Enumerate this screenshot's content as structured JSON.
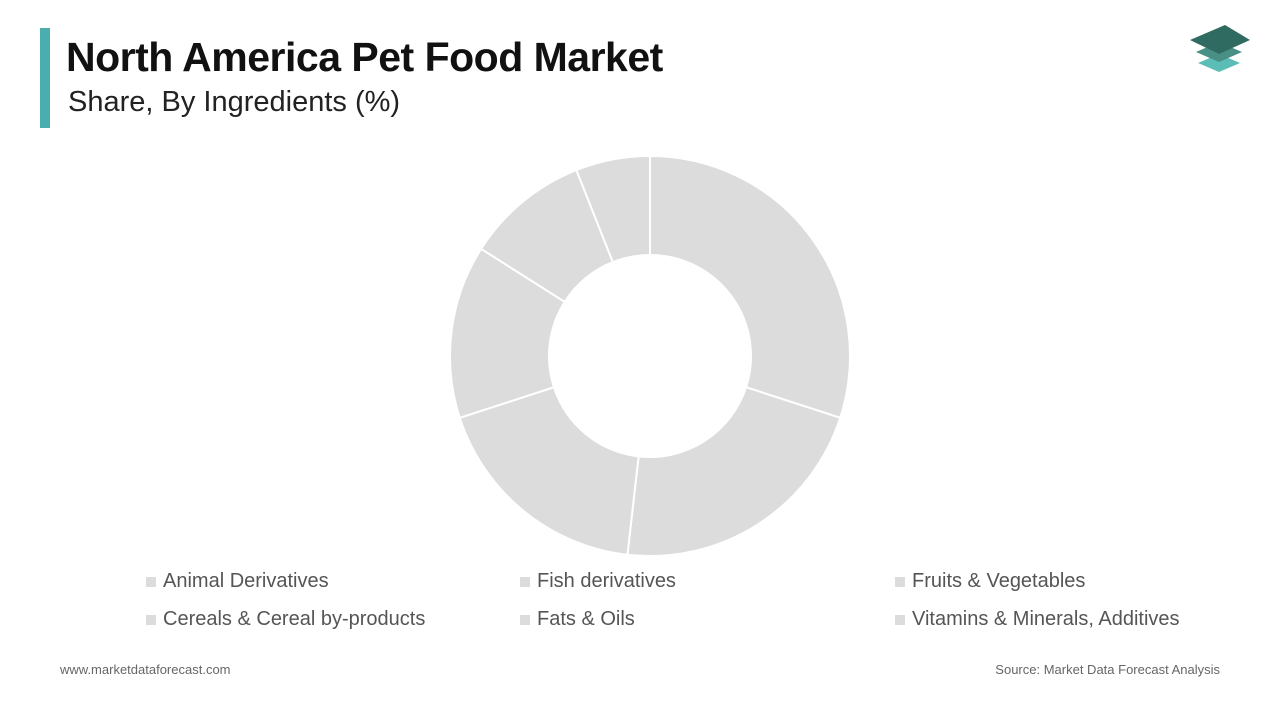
{
  "header": {
    "title": "North America Pet Food Market",
    "subtitle": "Share, By Ingredients (%)"
  },
  "colors": {
    "accent": "#4aaeae",
    "slice": "#dcdcdc",
    "logo_dark": "#2f6b60",
    "logo_mid": "#4a8f86",
    "logo_light": "#5bbdb6"
  },
  "chart_data": {
    "type": "pie",
    "donut": true,
    "categories": [
      "Animal Derivatives",
      "Fish derivatives",
      "Fruits & Vegetables",
      "Cereals & Cereal by-products",
      "Fats & Oils",
      "Vitamins & Minerals, Additives"
    ],
    "values": [
      30.0,
      21.8,
      18.2,
      14.0,
      10.0,
      6.0
    ],
    "title": "North America Pet Food Market",
    "subtitle": "Share, By Ingredients (%)",
    "legend_position": "bottom"
  },
  "legend": {
    "items": [
      "Animal Derivatives",
      "Fish derivatives",
      "Fruits & Vegetables",
      "Cereals & Cereal by-products",
      "Fats & Oils",
      "Vitamins & Minerals, Additives"
    ]
  },
  "footer": {
    "website": "www.marketdataforecast.com",
    "source": "Source: Market Data Forecast Analysis"
  }
}
